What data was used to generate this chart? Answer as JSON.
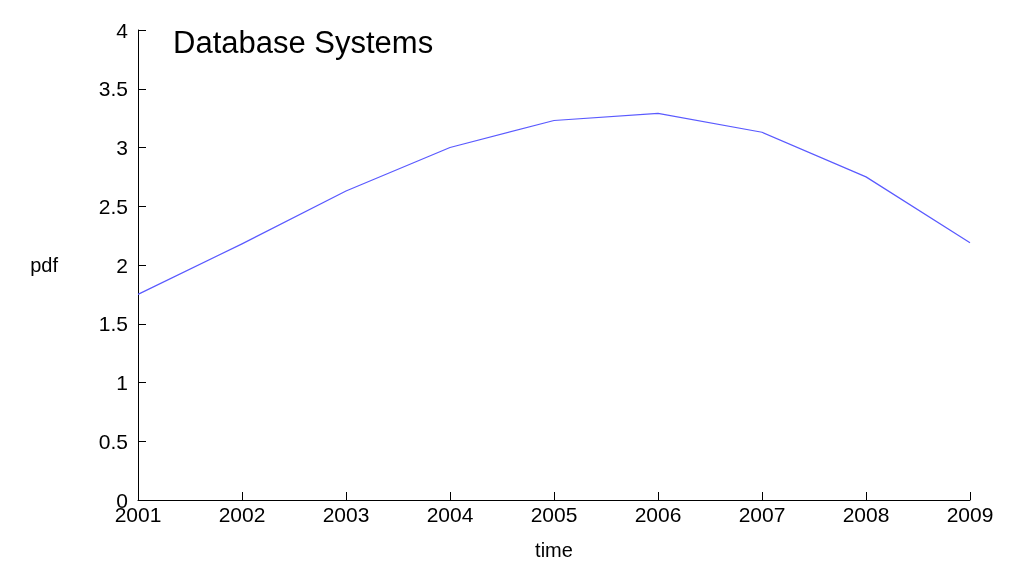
{
  "chart_data": {
    "type": "line",
    "title": "Database Systems",
    "xlabel": "time",
    "ylabel": "pdf",
    "x": [
      2001,
      2002,
      2003,
      2004,
      2005,
      2006,
      2007,
      2008,
      2009
    ],
    "series": [
      {
        "color": "#5a5aff",
        "values": [
          1.75,
          2.18,
          2.63,
          3.0,
          3.23,
          3.29,
          3.13,
          2.75,
          2.19
        ]
      }
    ],
    "xlim": [
      2001,
      2009
    ],
    "xticks": [
      2001,
      2002,
      2003,
      2004,
      2005,
      2006,
      2007,
      2008,
      2009
    ],
    "ylim": [
      0,
      4
    ],
    "yticks": [
      0,
      0.5,
      1,
      1.5,
      2,
      2.5,
      3,
      3.5,
      4
    ],
    "grid": false,
    "marker": "none",
    "line_style": "solid"
  }
}
